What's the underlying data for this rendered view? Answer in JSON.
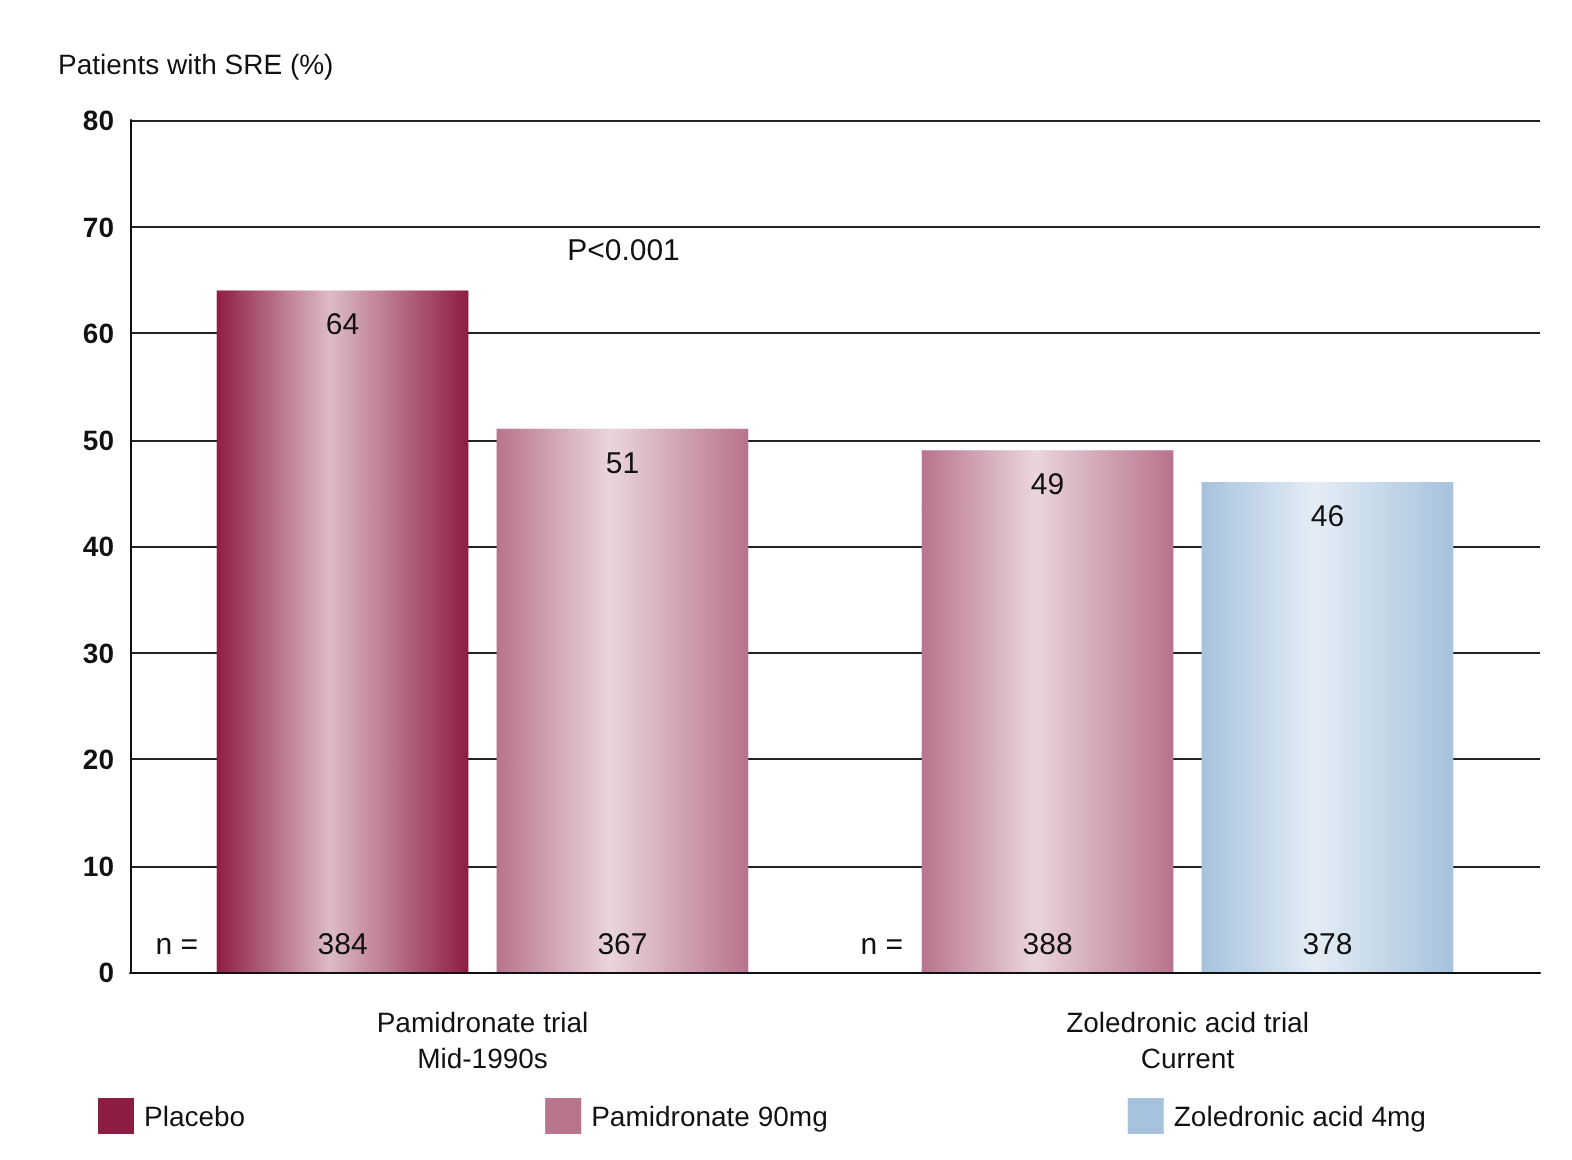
{
  "chart_data": {
    "type": "bar",
    "ylabel": "Patients with SRE (%)",
    "categories": [
      "Pamidronate trial\nMid-1990s",
      "Zoledronic acid trial\nCurrent"
    ],
    "series": [
      {
        "name": "Placebo",
        "color": "#8e1d42",
        "values": [
          64,
          null
        ]
      },
      {
        "name": "Pamidronate 90mg",
        "color": "#b8738d",
        "values": [
          51,
          49
        ]
      },
      {
        "name": "Zoledronic acid 4mg",
        "color": "#a6c2dc",
        "values": [
          null,
          46
        ]
      }
    ],
    "ylim": [
      0,
      80
    ],
    "yticks": [
      0,
      10,
      20,
      30,
      40,
      50,
      60,
      70,
      80
    ],
    "grid": "y",
    "legend": "bottom",
    "data_labels": true,
    "annotations": [
      "P<0.001",
      "n =",
      "384",
      "367",
      "n =",
      "388",
      "378"
    ]
  }
}
